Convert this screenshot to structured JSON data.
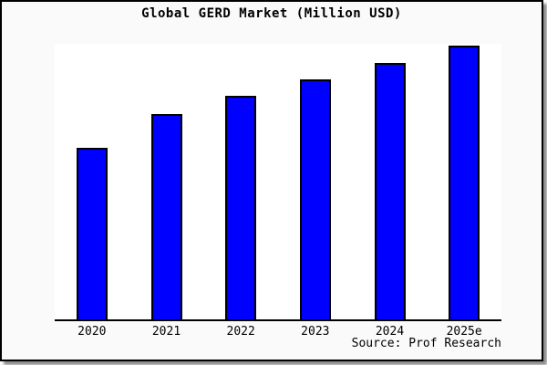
{
  "colors": {
    "bar_fill": "#0000ff",
    "bar_border": "#000000",
    "page_background": "#fafafa",
    "plot_background": "#ffffff",
    "frame_border": "#000000",
    "text": "#000000"
  },
  "chart_data": {
    "type": "bar",
    "title": "Global GERD Market (Million USD)",
    "categories": [
      "2020",
      "2021",
      "2022",
      "2023",
      "2024",
      "2025e"
    ],
    "values": [
      188,
      225,
      245,
      263,
      281,
      300
    ],
    "xlabel": "",
    "ylabel": "",
    "ylim": [
      0,
      302
    ],
    "grid": false,
    "legend": false,
    "y_axis_visible": false,
    "source": "Source: Prof Research"
  }
}
